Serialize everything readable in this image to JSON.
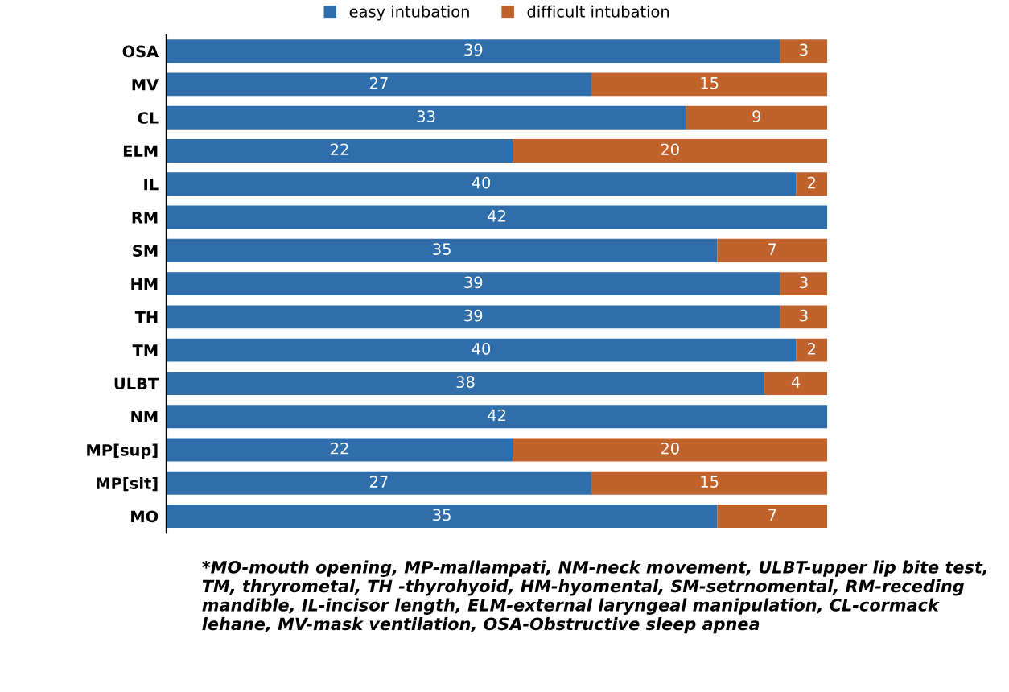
{
  "chart_data": {
    "type": "bar",
    "orientation": "horizontal",
    "stacked": true,
    "categories": [
      "OSA",
      "MV",
      "CL",
      "ELM",
      "IL",
      "RM",
      "SM",
      "HM",
      "TH",
      "TM",
      "ULBT",
      "NM",
      "MP[sup]",
      "MP[sit]",
      "MO"
    ],
    "series": [
      {
        "name": "easy intubation",
        "color": "#2f6eab",
        "values": [
          39,
          27,
          33,
          22,
          40,
          42,
          35,
          39,
          39,
          40,
          38,
          42,
          22,
          27,
          35
        ],
        "value_labels": [
          "39",
          "27",
          "33",
          "22",
          "40",
          "42",
          "35",
          "39",
          "39",
          "40",
          "38",
          "42",
          "22",
          "27",
          "35"
        ]
      },
      {
        "name": "difficult intubation",
        "color": "#c0622b",
        "values": [
          3,
          15,
          9,
          20,
          2,
          0,
          7,
          3,
          3,
          2,
          4,
          0,
          20,
          15,
          7
        ],
        "value_labels": [
          "3",
          "15",
          "9",
          "20",
          "2",
          null,
          "7",
          "3",
          "3",
          "2",
          "4",
          null,
          "20",
          "15",
          "7"
        ]
      }
    ],
    "legend": "top",
    "annotations": [
      "*MO-mouth opening, MP-mallampati, NM-neck movement, ULBT-upper lip bite test, TM, thryrometal, TH -thyrohyoid, HM-hyomental, SM-setrnomental, RM-receding mandible, IL-incisor length, ELM-external laryngeal manipulation, CL-cormack lehane, MV-mask ventilation, OSA-Obstructive sleep apnea"
    ]
  }
}
